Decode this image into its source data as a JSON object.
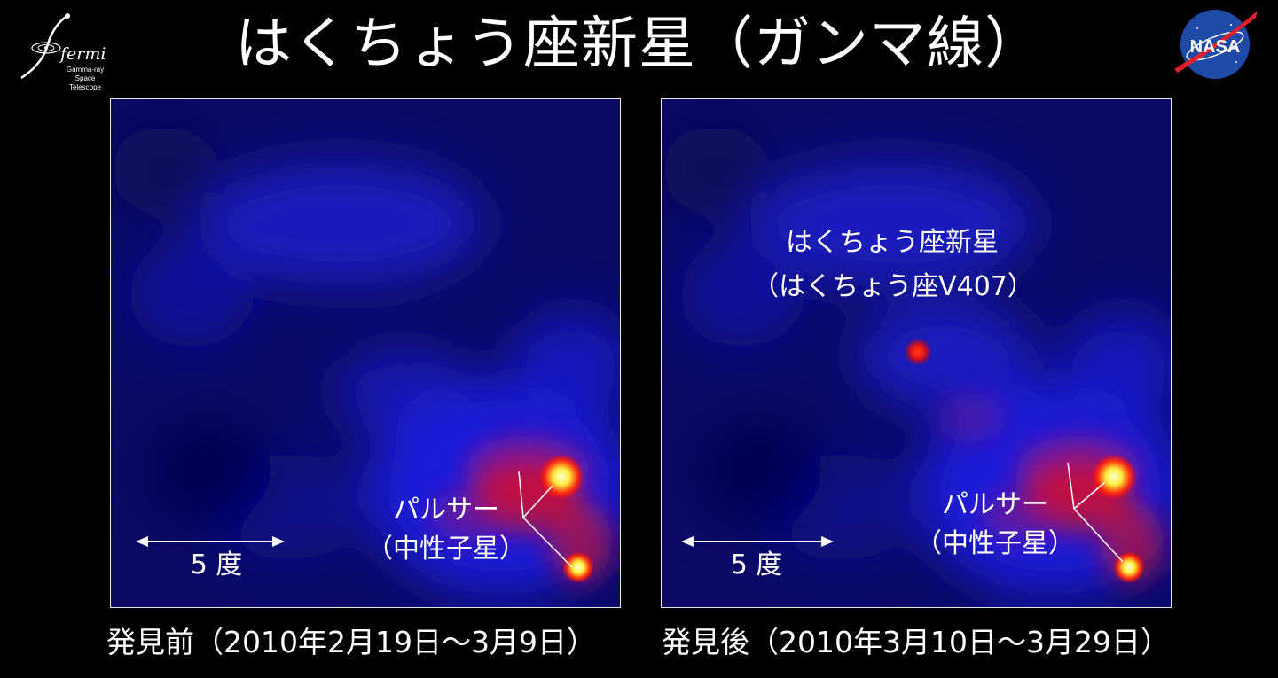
{
  "title": "はくちょう座新星（ガンマ線）",
  "logos": {
    "fermi": {
      "word": "fermi",
      "line1": "Gamma-ray",
      "line2": "Space Telescope"
    },
    "nasa": {
      "word": "NASA"
    }
  },
  "panels": [
    {
      "id": "before",
      "pulsar_label_line1": "パルサー",
      "pulsar_label_line2": "（中性子星）",
      "scale_label": "5 度",
      "caption": "発見前（2010年2月19日〜3月9日）"
    },
    {
      "id": "after",
      "nova_label_line1": "はくちょう座新星",
      "nova_label_line2": "（はくちょう座V407）",
      "pulsar_label_line1": "パルサー",
      "pulsar_label_line2": "（中性子星）",
      "scale_label": "5 度",
      "caption": "発見後（2010年3月10日〜3月29日）"
    }
  ],
  "colors": {
    "background": "#000000",
    "sky_dark": "#0a0a5a",
    "sky_blue": "#1a1ad8",
    "emission_red": "#e01010",
    "source_core": "#ffff80",
    "nasa_blue": "#1f4aa8",
    "nasa_red": "#e0202a"
  }
}
